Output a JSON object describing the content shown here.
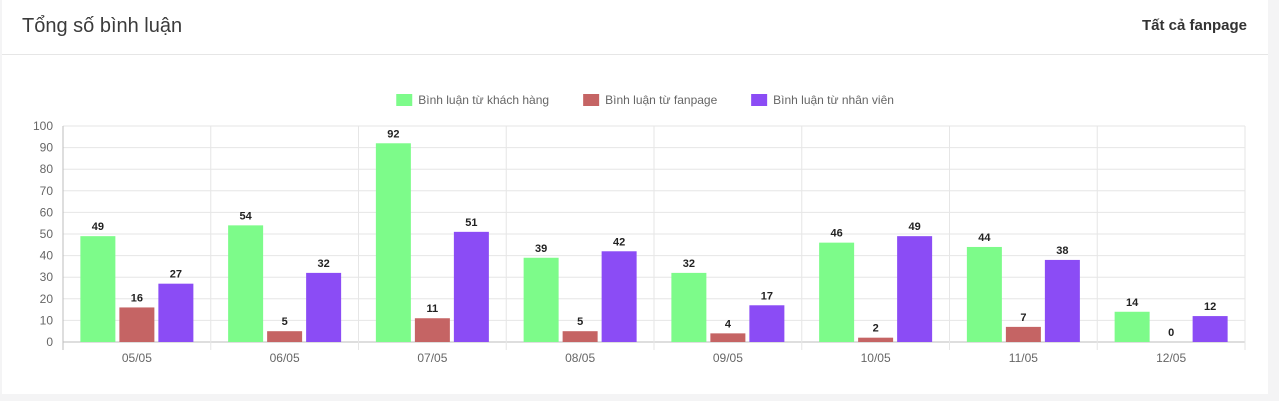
{
  "header": {
    "title": "Tổng số bình luận",
    "filter_label": "Tất cả fanpage"
  },
  "chart_data": {
    "type": "bar",
    "categories": [
      "05/05",
      "06/05",
      "07/05",
      "08/05",
      "09/05",
      "10/05",
      "11/05",
      "12/05"
    ],
    "series": [
      {
        "name": "Bình luận từ khách hàng",
        "color": "#7dfb8a",
        "values": [
          49,
          54,
          92,
          39,
          32,
          46,
          44,
          14
        ]
      },
      {
        "name": "Bình luận từ fanpage",
        "color": "#c56464",
        "values": [
          16,
          5,
          11,
          5,
          4,
          2,
          7,
          0
        ]
      },
      {
        "name": "Bình luận từ nhân viên",
        "color": "#8b4cf5",
        "values": [
          27,
          32,
          51,
          42,
          17,
          49,
          38,
          12
        ]
      }
    ],
    "yticks": [
      0,
      10,
      20,
      30,
      40,
      50,
      60,
      70,
      80,
      90,
      100
    ],
    "ylim": [
      0,
      100
    ],
    "grid": true,
    "legend_position": "top",
    "data_labels": true
  }
}
